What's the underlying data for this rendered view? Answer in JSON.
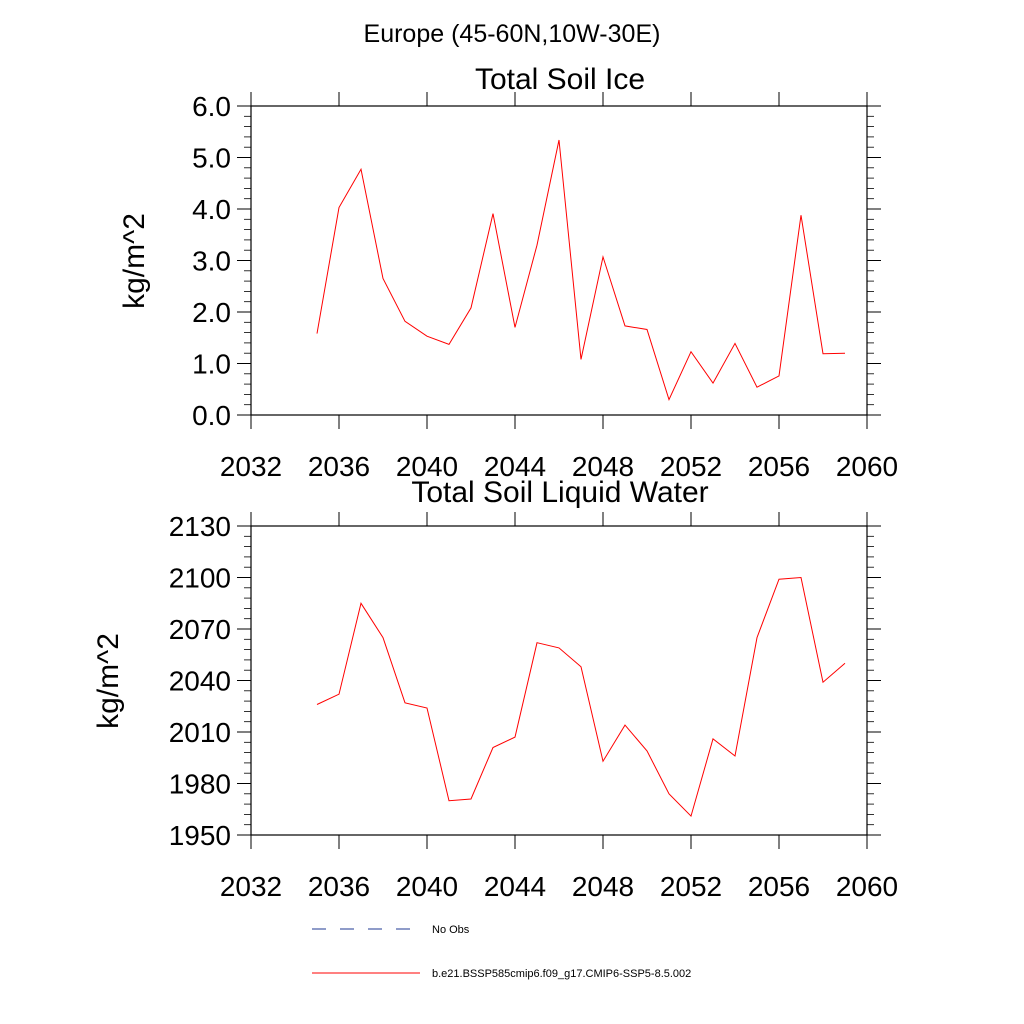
{
  "figure": {
    "suptitle": "Europe (45-60N,10W-30E)"
  },
  "colors": {
    "model_line": "#ff0000",
    "obs_line": "#1f3a93",
    "axes": "#000000"
  },
  "legend": [
    {
      "label": "No Obs",
      "style": "dashed",
      "color": "#1f3a93"
    },
    {
      "label": "b.e21.BSSP585cmip6.f09_g17.CMIP6-SSP5-8.5.002",
      "style": "solid",
      "color": "#ff0000"
    }
  ],
  "chart_data": [
    {
      "type": "line",
      "title": "Total Soil Ice",
      "xlabel": "",
      "ylabel": "kg/m^2",
      "xlim": [
        2032,
        2060
      ],
      "ylim": [
        0,
        6
      ],
      "xticks": [
        2032,
        2036,
        2040,
        2044,
        2048,
        2052,
        2056,
        2060
      ],
      "xtick_labels": [
        "2032",
        "2036",
        "2040",
        "2044",
        "2048",
        "2052",
        "2056",
        "2060"
      ],
      "yticks": [
        0,
        1,
        2,
        3,
        4,
        5,
        6
      ],
      "ytick_labels": [
        "0.0",
        "1.0",
        "2.0",
        "3.0",
        "4.0",
        "5.0",
        "6.0"
      ],
      "grid": false,
      "series": [
        {
          "name": "b.e21.BSSP585cmip6.f09_g17.CMIP6-SSP5-8.5.002",
          "color": "#ff0000",
          "x": [
            2035,
            2036,
            2037,
            2038,
            2039,
            2040,
            2041,
            2042,
            2043,
            2044,
            2045,
            2046,
            2047,
            2048,
            2049,
            2050,
            2051,
            2052,
            2053,
            2054,
            2055,
            2056,
            2057,
            2058,
            2059
          ],
          "y": [
            1.58,
            4.03,
            4.77,
            2.65,
            1.82,
            1.53,
            1.37,
            2.08,
            3.91,
            1.7,
            3.3,
            5.34,
            1.08,
            3.07,
            1.73,
            1.66,
            0.3,
            1.23,
            0.62,
            1.39,
            0.54,
            0.76,
            3.88,
            1.19,
            1.2
          ]
        }
      ]
    },
    {
      "type": "line",
      "title": "Total Soil Liquid Water",
      "xlabel": "",
      "ylabel": "kg/m^2",
      "xlim": [
        2032,
        2060
      ],
      "ylim": [
        1950,
        2130
      ],
      "xticks": [
        2032,
        2036,
        2040,
        2044,
        2048,
        2052,
        2056,
        2060
      ],
      "xtick_labels": [
        "2032",
        "2036",
        "2040",
        "2044",
        "2048",
        "2052",
        "2056",
        "2060"
      ],
      "yticks": [
        1950,
        1980,
        2010,
        2040,
        2070,
        2100,
        2130
      ],
      "ytick_labels": [
        "1950",
        "1980",
        "2010",
        "2040",
        "2070",
        "2100",
        "2130"
      ],
      "grid": false,
      "series": [
        {
          "name": "b.e21.BSSP585cmip6.f09_g17.CMIP6-SSP5-8.5.002",
          "color": "#ff0000",
          "x": [
            2035,
            2036,
            2037,
            2038,
            2039,
            2040,
            2041,
            2042,
            2043,
            2044,
            2045,
            2046,
            2047,
            2048,
            2049,
            2050,
            2051,
            2052,
            2053,
            2054,
            2055,
            2056,
            2057,
            2058,
            2059
          ],
          "y": [
            2026,
            2032,
            2085,
            2065,
            2027,
            2024,
            1970,
            1971,
            2001,
            2007,
            2062,
            2059,
            2048,
            1993,
            2014,
            1999,
            1974,
            1961,
            2006,
            1996,
            2065,
            2099,
            2100,
            2039,
            2050
          ]
        }
      ]
    }
  ]
}
